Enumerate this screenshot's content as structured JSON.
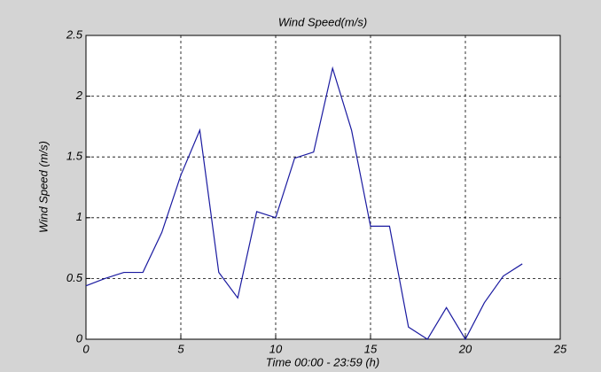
{
  "chart_data": {
    "type": "line",
    "title": "Wind Speed(m/s)",
    "x_label": "Time 00:00 - 23:59 (h)",
    "y_label": "Wind Speed (m/s)",
    "x": [
      0,
      1,
      2,
      3,
      4,
      5,
      6,
      7,
      8,
      9,
      10,
      11,
      12,
      13,
      14,
      15,
      16,
      17,
      18,
      19,
      20,
      21,
      22,
      23
    ],
    "series": [
      {
        "name": "Wind Speed",
        "color": "#1a1aa0",
        "values": [
          0.44,
          0.5,
          0.55,
          0.55,
          0.88,
          1.35,
          1.72,
          0.55,
          0.34,
          1.05,
          1.0,
          1.49,
          1.54,
          2.23,
          1.72,
          0.93,
          0.93,
          0.1,
          0.0,
          0.26,
          0.0,
          0.3,
          0.52,
          0.62
        ]
      }
    ],
    "xlim": [
      0,
      25
    ],
    "xticks": [
      0,
      5,
      10,
      15,
      20,
      25
    ],
    "ylim": [
      0,
      2.5
    ],
    "yticks": [
      0,
      0.5,
      1,
      1.5,
      2,
      2.5
    ],
    "grid": true
  }
}
